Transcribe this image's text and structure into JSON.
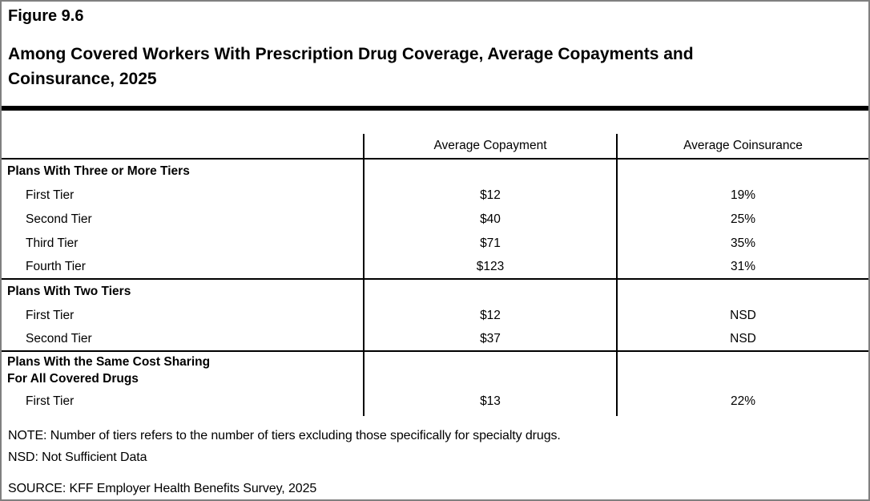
{
  "figure_label": "Figure 9.6",
  "title_lines": [
    "Among Covered Workers With Prescription Drug Coverage, Average Copayments and",
    "Coinsurance, 2025"
  ],
  "chart_data": {
    "type": "table",
    "title": "Among Covered Workers With Prescription Drug Coverage, Average Copayments and Coinsurance, 2025",
    "columns": [
      "Average Copayment",
      "Average Coinsurance"
    ],
    "sections": [
      {
        "header": "Plans With Three or More Tiers",
        "rows": [
          {
            "label": "First Tier",
            "copayment": "$12",
            "coinsurance": "19%"
          },
          {
            "label": "Second Tier",
            "copayment": "$40",
            "coinsurance": "25%"
          },
          {
            "label": "Third Tier",
            "copayment": "$71",
            "coinsurance": "35%"
          },
          {
            "label": "Fourth Tier",
            "copayment": "$123",
            "coinsurance": "31%"
          }
        ]
      },
      {
        "header": "Plans With Two Tiers",
        "rows": [
          {
            "label": "First Tier",
            "copayment": "$12",
            "coinsurance": "NSD"
          },
          {
            "label": "Second Tier",
            "copayment": "$37",
            "coinsurance": "NSD"
          }
        ]
      },
      {
        "header": "Plans With the Same Cost Sharing For All Covered Drugs",
        "header_lines": [
          "Plans With the Same Cost Sharing",
          "For All Covered Drugs"
        ],
        "rows": [
          {
            "label": "First Tier",
            "copayment": "$13",
            "coinsurance": "22%"
          }
        ]
      }
    ]
  },
  "notes": {
    "note": "NOTE: Number of tiers refers to the number of tiers excluding those specifically for specialty drugs.",
    "nsd": "NSD: Not Sufficient Data",
    "source": "SOURCE: KFF Employer Health Benefits Survey, 2025"
  },
  "colors": {
    "background": "#ffffff",
    "outer_border": "#808080",
    "rule": "#000000",
    "text": "#000000"
  }
}
